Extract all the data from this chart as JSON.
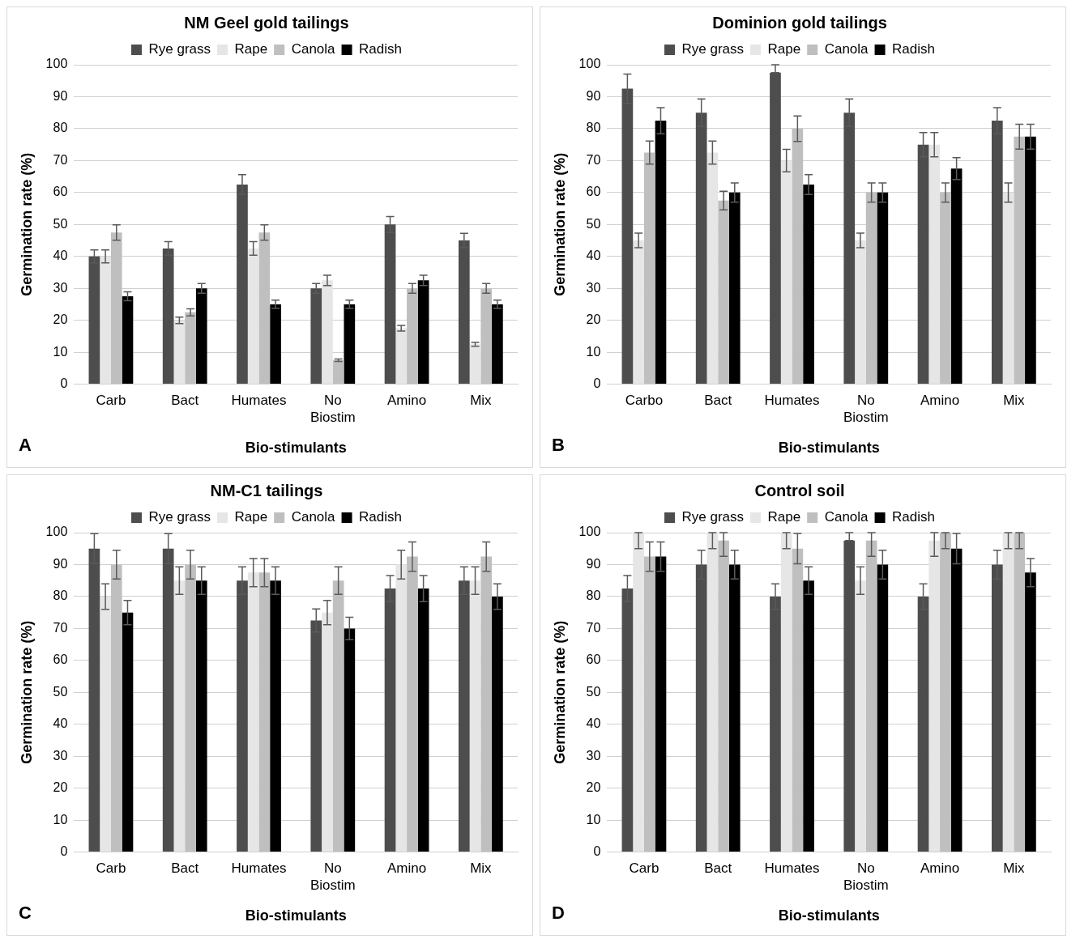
{
  "chart_data": [
    {
      "type": "bar",
      "title": "NM Geel gold tailings",
      "xlabel": "Bio-stimulants",
      "ylabel": "Germination rate (%)",
      "categories": [
        "Carb",
        "Bact",
        "Humates",
        "No Biostim",
        "Amino",
        "Mix"
      ],
      "ylim": [
        0,
        100
      ],
      "yticks": [
        0,
        10,
        20,
        30,
        40,
        50,
        60,
        70,
        80,
        90,
        100
      ],
      "grid": "y",
      "legend": "top",
      "annotations": [
        "A"
      ],
      "series": [
        {
          "name": "Rye grass",
          "color": "#4d4d4d",
          "values": [
            40,
            42.5,
            62.5,
            30,
            50,
            45
          ],
          "errors": [
            2,
            2.1,
            3.1,
            1.5,
            2.5,
            2.2
          ]
        },
        {
          "name": "Rape",
          "color": "#e6e6e6",
          "values": [
            40,
            20,
            42.5,
            32.5,
            17.5,
            12.5
          ],
          "errors": [
            2,
            1,
            2.1,
            1.6,
            0.9,
            0.6
          ]
        },
        {
          "name": "Canola",
          "color": "#bfbfbf",
          "values": [
            47.5,
            22.5,
            47.5,
            7.5,
            30,
            30
          ],
          "errors": [
            2.4,
            1.1,
            2.4,
            0.4,
            1.5,
            1.5
          ]
        },
        {
          "name": "Radish",
          "color": "#000000",
          "values": [
            27.5,
            30,
            25,
            25,
            32.5,
            25
          ],
          "errors": [
            1.4,
            1.5,
            1.3,
            1.3,
            1.6,
            1.3
          ]
        }
      ]
    },
    {
      "type": "bar",
      "title": "Dominion gold tailings",
      "xlabel": "Bio-stimulants",
      "ylabel": "Germination rate (%)",
      "categories": [
        "Carbo",
        "Bact",
        "Humates",
        "No Biostim",
        "Amino",
        "Mix"
      ],
      "ylim": [
        0,
        100
      ],
      "yticks": [
        0,
        10,
        20,
        30,
        40,
        50,
        60,
        70,
        80,
        90,
        100
      ],
      "grid": "y",
      "legend": "top",
      "annotations": [
        "B"
      ],
      "series": [
        {
          "name": "Rye grass",
          "color": "#4d4d4d",
          "values": [
            92.5,
            85,
            97.5,
            85,
            75,
            82.5
          ],
          "errors": [
            4.6,
            4.3,
            [
              97.5,
              100
            ],
            4.3,
            3.8,
            4.1
          ]
        },
        {
          "name": "Rape",
          "color": "#e6e6e6",
          "values": [
            45,
            72.5,
            70,
            45,
            75,
            60
          ],
          "errors": [
            2.3,
            3.6,
            3.5,
            2.3,
            3.8,
            3
          ]
        },
        {
          "name": "Canola",
          "color": "#bfbfbf",
          "values": [
            72.5,
            57.5,
            80,
            60,
            60,
            77.5
          ],
          "errors": [
            3.6,
            2.9,
            4,
            3,
            3,
            3.9
          ]
        },
        {
          "name": "Radish",
          "color": "#000000",
          "values": [
            82.5,
            60,
            62.5,
            60,
            67.5,
            77.5
          ],
          "errors": [
            4.1,
            3,
            3.1,
            3,
            3.4,
            3.9
          ]
        }
      ]
    },
    {
      "type": "bar",
      "title": "NM-C1 tailings",
      "xlabel": "Bio-stimulants",
      "ylabel": "Germination rate (%)",
      "categories": [
        "Carb",
        "Bact",
        "Humates",
        "No Biostim",
        "Amino",
        "Mix"
      ],
      "ylim": [
        0,
        100
      ],
      "yticks": [
        0,
        10,
        20,
        30,
        40,
        50,
        60,
        70,
        80,
        90,
        100
      ],
      "grid": "y",
      "legend": "top",
      "annotations": [
        "C"
      ],
      "series": [
        {
          "name": "Rye grass",
          "color": "#4d4d4d",
          "values": [
            95,
            95,
            85,
            72.5,
            82.5,
            85
          ],
          "errors": [
            4.7,
            4.7,
            4.3,
            3.6,
            4.1,
            4.3
          ]
        },
        {
          "name": "Rape",
          "color": "#e6e6e6",
          "values": [
            80,
            85,
            87.5,
            75,
            90,
            85
          ],
          "errors": [
            4,
            4.3,
            4.4,
            3.8,
            4.5,
            4.3
          ]
        },
        {
          "name": "Canola",
          "color": "#bfbfbf",
          "values": [
            90,
            90,
            87.5,
            85,
            92.5,
            92.5
          ],
          "errors": [
            4.5,
            4.5,
            4.4,
            4.3,
            4.6,
            4.6
          ]
        },
        {
          "name": "Radish",
          "color": "#000000",
          "values": [
            75,
            85,
            85,
            70,
            82.5,
            80
          ],
          "errors": [
            3.8,
            4.3,
            4.3,
            3.5,
            4.1,
            4
          ]
        }
      ]
    },
    {
      "type": "bar",
      "title": "Control soil",
      "xlabel": "Bio-stimulants",
      "ylabel": "Germination rate (%)",
      "categories": [
        "Carb",
        "Bact",
        "Humates",
        "No Biostim",
        "Amino",
        "Mix"
      ],
      "ylim": [
        0,
        100
      ],
      "yticks": [
        0,
        10,
        20,
        30,
        40,
        50,
        60,
        70,
        80,
        90,
        100
      ],
      "grid": "y",
      "legend": "top",
      "annotations": [
        "D"
      ],
      "series": [
        {
          "name": "Rye grass",
          "color": "#4d4d4d",
          "values": [
            82.5,
            90,
            80,
            97.5,
            80,
            90
          ],
          "errors": [
            4.1,
            4.5,
            4,
            [
              97.5,
              100
            ],
            4,
            4.5
          ]
        },
        {
          "name": "Rape",
          "color": "#e6e6e6",
          "values": [
            100,
            100,
            100,
            85,
            97.5,
            100
          ],
          "errors": [
            [
              95,
              100
            ],
            [
              95,
              100
            ],
            [
              95,
              100
            ],
            4.3,
            [
              92.6,
              100
            ],
            [
              95,
              100
            ]
          ]
        },
        {
          "name": "Canola",
          "color": "#bfbfbf",
          "values": [
            92.5,
            97.5,
            95,
            97.5,
            100,
            100
          ],
          "errors": [
            4.6,
            [
              92.6,
              100
            ],
            4.75,
            [
              92.6,
              100
            ],
            [
              95,
              100
            ],
            [
              95,
              100
            ]
          ]
        },
        {
          "name": "Radish",
          "color": "#000000",
          "values": [
            92.5,
            90,
            85,
            90,
            95,
            87.5
          ],
          "errors": [
            4.6,
            4.5,
            4.3,
            4.5,
            4.75,
            4.4
          ]
        }
      ]
    }
  ]
}
